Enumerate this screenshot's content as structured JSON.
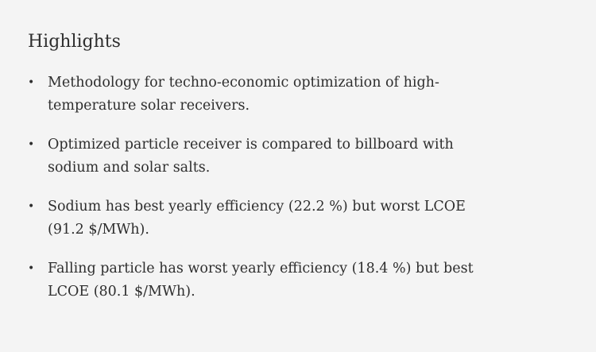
{
  "highlights": {
    "title": "Highlights",
    "items": [
      {
        "bullet": "•",
        "text": "Methodology for techno-economic optimization of high-temperature solar receivers."
      },
      {
        "bullet": "•",
        "text": "Optimized particle receiver is compared to billboard with sodium and solar salts."
      },
      {
        "bullet": "•",
        "text": "Sodium has best yearly efficiency (22.2 %) but worst LCOE (91.2 $/MWh)."
      },
      {
        "bullet": "•",
        "text": "Falling particle has worst yearly efficiency (18.4 %) but best LCOE (80.1 $/MWh)."
      }
    ]
  }
}
